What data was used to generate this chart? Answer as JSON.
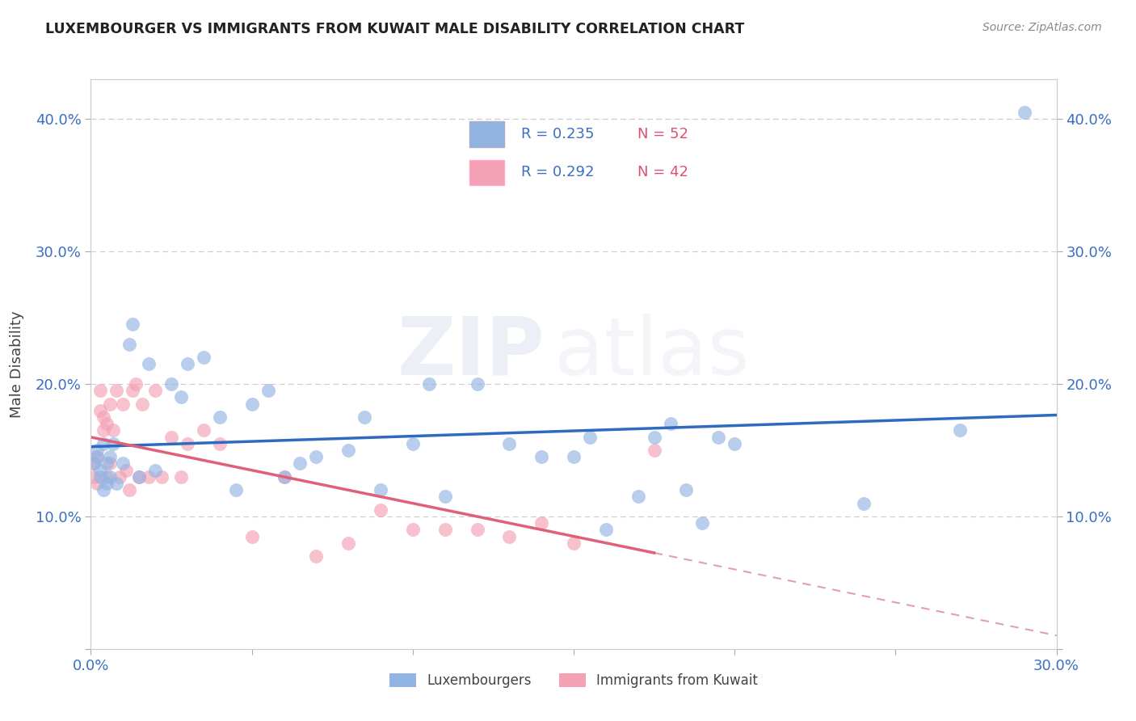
{
  "title": "LUXEMBOURGER VS IMMIGRANTS FROM KUWAIT MALE DISABILITY CORRELATION CHART",
  "source": "Source: ZipAtlas.com",
  "ylabel_label": "Male Disability",
  "legend_label1": "Luxembourgers",
  "legend_label2": "Immigrants from Kuwait",
  "R1": "R = 0.235",
  "N1": "N = 52",
  "R2": "R = 0.292",
  "N2": "N = 42",
  "color_blue": "#92b4e3",
  "color_pink": "#f4a0b5",
  "color_blue_line": "#2e6abf",
  "color_pink_line": "#e0607a",
  "color_dashed": "#e0a0b0",
  "xlim": [
    0.0,
    0.3
  ],
  "ylim": [
    0.0,
    0.43
  ],
  "x_ticks": [
    0.0,
    0.05,
    0.1,
    0.15,
    0.2,
    0.25,
    0.3
  ],
  "y_ticks": [
    0.0,
    0.1,
    0.2,
    0.3,
    0.4
  ],
  "blue_x": [
    0.001,
    0.002,
    0.002,
    0.003,
    0.003,
    0.004,
    0.004,
    0.005,
    0.005,
    0.006,
    0.006,
    0.007,
    0.008,
    0.01,
    0.012,
    0.013,
    0.015,
    0.018,
    0.02,
    0.025,
    0.028,
    0.03,
    0.035,
    0.04,
    0.045,
    0.05,
    0.055,
    0.06,
    0.065,
    0.07,
    0.08,
    0.085,
    0.09,
    0.1,
    0.105,
    0.11,
    0.12,
    0.13,
    0.14,
    0.15,
    0.155,
    0.16,
    0.17,
    0.175,
    0.18,
    0.185,
    0.19,
    0.195,
    0.2,
    0.24,
    0.27,
    0.29
  ],
  "blue_y": [
    0.14,
    0.145,
    0.15,
    0.13,
    0.135,
    0.155,
    0.12,
    0.125,
    0.14,
    0.145,
    0.13,
    0.155,
    0.125,
    0.14,
    0.23,
    0.245,
    0.13,
    0.215,
    0.135,
    0.2,
    0.19,
    0.215,
    0.22,
    0.175,
    0.12,
    0.185,
    0.195,
    0.13,
    0.14,
    0.145,
    0.15,
    0.175,
    0.12,
    0.155,
    0.2,
    0.115,
    0.2,
    0.155,
    0.145,
    0.145,
    0.16,
    0.09,
    0.115,
    0.16,
    0.17,
    0.12,
    0.095,
    0.16,
    0.155,
    0.11,
    0.165,
    0.405
  ],
  "pink_x": [
    0.001,
    0.001,
    0.002,
    0.002,
    0.003,
    0.003,
    0.004,
    0.004,
    0.005,
    0.005,
    0.006,
    0.006,
    0.007,
    0.008,
    0.009,
    0.01,
    0.011,
    0.012,
    0.013,
    0.014,
    0.015,
    0.016,
    0.018,
    0.02,
    0.022,
    0.025,
    0.028,
    0.03,
    0.035,
    0.04,
    0.05,
    0.06,
    0.07,
    0.08,
    0.09,
    0.1,
    0.11,
    0.12,
    0.13,
    0.14,
    0.15,
    0.175
  ],
  "pink_y": [
    0.13,
    0.14,
    0.125,
    0.145,
    0.195,
    0.18,
    0.175,
    0.165,
    0.13,
    0.17,
    0.14,
    0.185,
    0.165,
    0.195,
    0.13,
    0.185,
    0.135,
    0.12,
    0.195,
    0.2,
    0.13,
    0.185,
    0.13,
    0.195,
    0.13,
    0.16,
    0.13,
    0.155,
    0.165,
    0.155,
    0.085,
    0.13,
    0.07,
    0.08,
    0.105,
    0.09,
    0.09,
    0.09,
    0.085,
    0.095,
    0.08,
    0.15
  ],
  "watermark_zip": "ZIP",
  "watermark_atlas": "atlas",
  "background_color": "#ffffff"
}
